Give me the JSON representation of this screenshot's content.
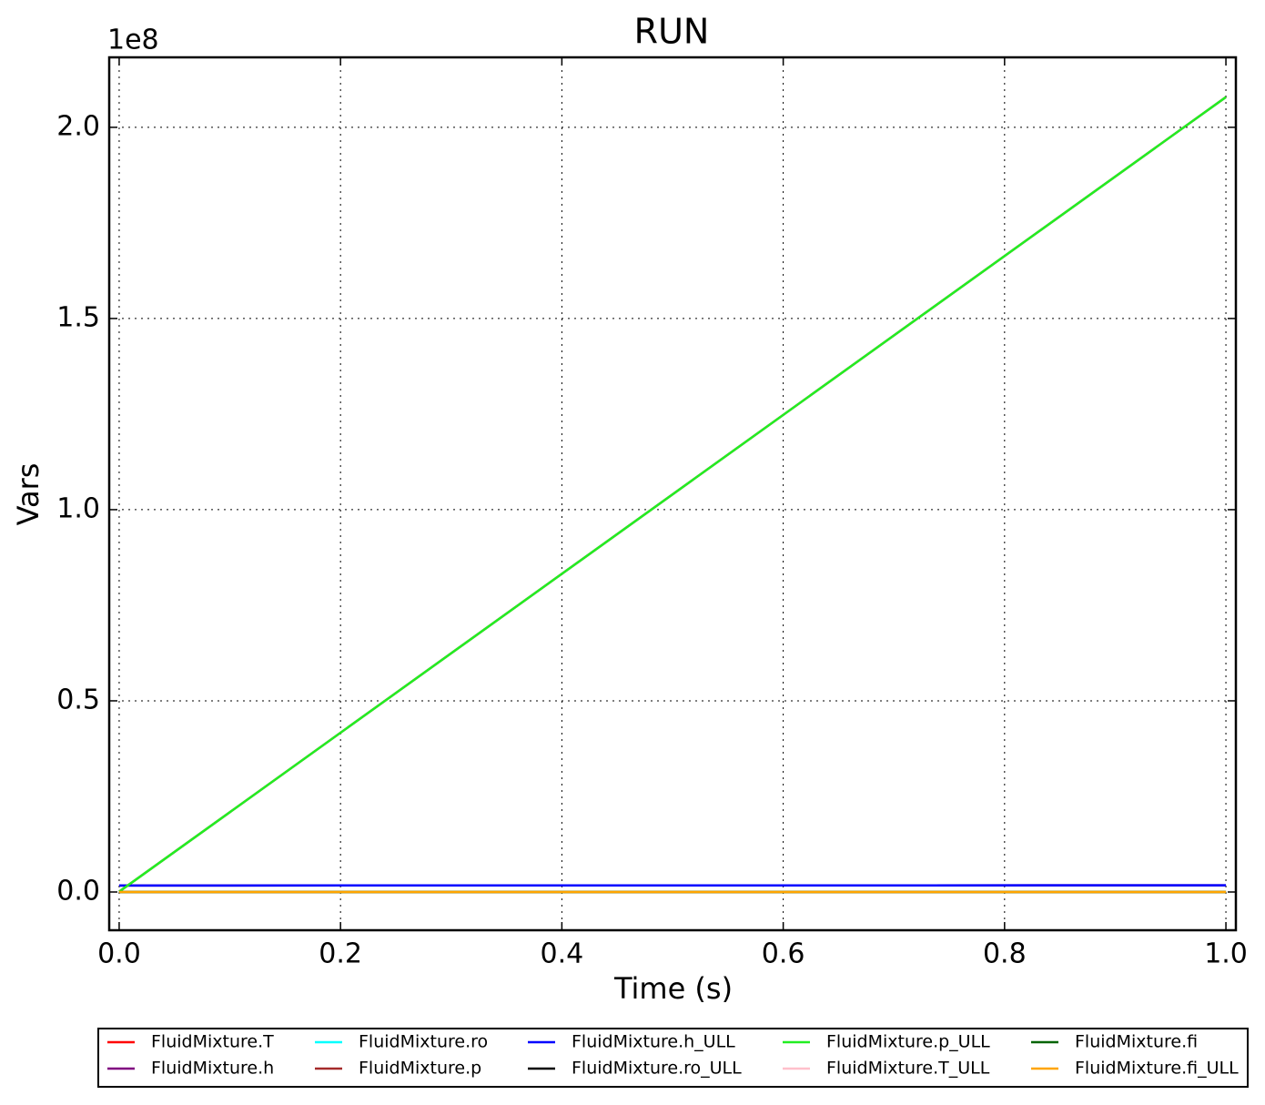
{
  "chart_data": {
    "type": "line",
    "title": "RUN",
    "x_label": "Time (s)",
    "y_label": "Vars",
    "y_offset_label": "1e8",
    "x": [
      0,
      1
    ],
    "series": [
      {
        "name": "FluidMixture.T",
        "color": "#ff0000",
        "values": [
          300,
          300
        ]
      },
      {
        "name": "FluidMixture.h",
        "color": "#800080",
        "values": [
          1700000,
          1750000
        ]
      },
      {
        "name": "FluidMixture.ro",
        "color": "#00ffff",
        "values": [
          1000,
          1000
        ]
      },
      {
        "name": "FluidMixture.p",
        "color": "#a52a2a",
        "values": [
          100000,
          207900000
        ]
      },
      {
        "name": "FluidMixture.h_ULL",
        "color": "#0000ff",
        "values": [
          1700000,
          1750000
        ]
      },
      {
        "name": "FluidMixture.ro_ULL",
        "color": "#000000",
        "values": [
          1000,
          1000
        ]
      },
      {
        "name": "FluidMixture.p_ULL",
        "color": "#22ee22",
        "values": [
          100000,
          207900000
        ]
      },
      {
        "name": "FluidMixture.T_ULL",
        "color": "#ffc0cb",
        "values": [
          300,
          300
        ]
      },
      {
        "name": "FluidMixture.fi",
        "color": "#006400",
        "values": [
          0.5,
          0.5
        ]
      },
      {
        "name": "FluidMixture.fi_ULL",
        "color": "#ffa500",
        "values": [
          0.5,
          0.5
        ]
      }
    ],
    "xlim": [
      -0.009,
      1.009
    ],
    "ylim": [
      -10000000,
      218300000
    ],
    "xticks": [
      {
        "value": 0,
        "label": "0.0"
      },
      {
        "value": 0.2,
        "label": "0.2"
      },
      {
        "value": 0.4,
        "label": "0.4"
      },
      {
        "value": 0.6,
        "label": "0.6"
      },
      {
        "value": 0.8,
        "label": "0.8"
      },
      {
        "value": 1,
        "label": "1.0"
      }
    ],
    "yticks": [
      {
        "value": 0,
        "label": "0.0"
      },
      {
        "value": 50000000,
        "label": "0.5"
      },
      {
        "value": 100000000,
        "label": "1.0"
      },
      {
        "value": 150000000,
        "label": "1.5"
      },
      {
        "value": 200000000,
        "label": "2.0"
      }
    ],
    "grid": true,
    "legend": "below",
    "legend_columns": 5
  }
}
